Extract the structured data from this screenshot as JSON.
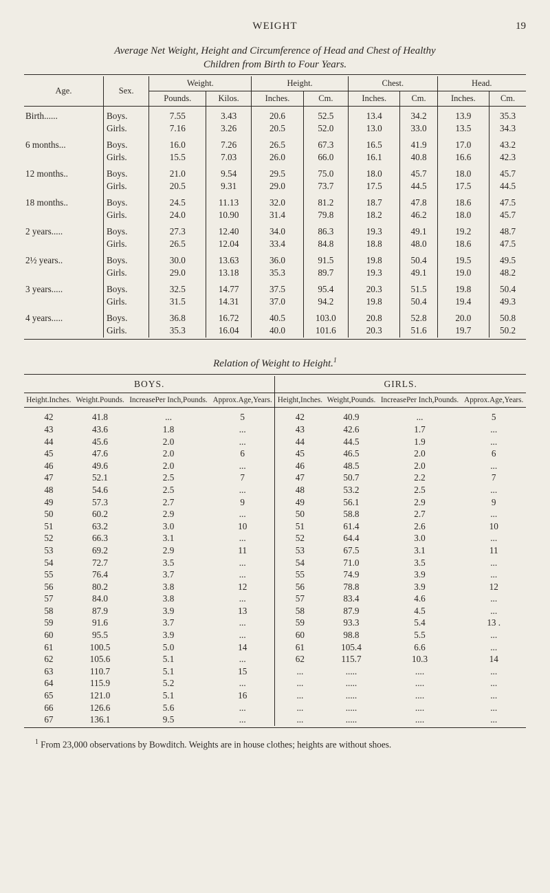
{
  "header": {
    "title": "WEIGHT",
    "page": "19"
  },
  "table1": {
    "caption_line1": "Average Net Weight, Height and Circumference of Head and Chest of Healthy",
    "caption_line2": "Children from Birth to Four Years.",
    "groups": {
      "age": "Age.",
      "sex": "Sex.",
      "weight": "Weight.",
      "height": "Height.",
      "chest": "Chest.",
      "head": "Head."
    },
    "subcols": {
      "pounds": "Pounds.",
      "kilos": "Kilos.",
      "inches": "Inches.",
      "cm": "Cm.",
      "cm2": "Cm."
    },
    "rows": [
      {
        "age": "Birth......",
        "sex": "Boys.",
        "wP": "7.55",
        "wK": "3.43",
        "hI": "20.6",
        "hC": "52.5",
        "cI": "13.4",
        "cC": "34.2",
        "hdI": "13.9",
        "hdC": "35.3"
      },
      {
        "age": "",
        "sex": "Girls.",
        "wP": "7.16",
        "wK": "3.26",
        "hI": "20.5",
        "hC": "52.0",
        "cI": "13.0",
        "cC": "33.0",
        "hdI": "13.5",
        "hdC": "34.3"
      },
      {
        "age": "6 months...",
        "sex": "Boys.",
        "wP": "16.0",
        "wK": "7.26",
        "hI": "26.5",
        "hC": "67.3",
        "cI": "16.5",
        "cC": "41.9",
        "hdI": "17.0",
        "hdC": "43.2"
      },
      {
        "age": "",
        "sex": "Girls.",
        "wP": "15.5",
        "wK": "7.03",
        "hI": "26.0",
        "hC": "66.0",
        "cI": "16.1",
        "cC": "40.8",
        "hdI": "16.6",
        "hdC": "42.3"
      },
      {
        "age": "12 months..",
        "sex": "Boys.",
        "wP": "21.0",
        "wK": "9.54",
        "hI": "29.5",
        "hC": "75.0",
        "cI": "18.0",
        "cC": "45.7",
        "hdI": "18.0",
        "hdC": "45.7"
      },
      {
        "age": "",
        "sex": "Girls.",
        "wP": "20.5",
        "wK": "9.31",
        "hI": "29.0",
        "hC": "73.7",
        "cI": "17.5",
        "cC": "44.5",
        "hdI": "17.5",
        "hdC": "44.5"
      },
      {
        "age": "18 months..",
        "sex": "Boys.",
        "wP": "24.5",
        "wK": "11.13",
        "hI": "32.0",
        "hC": "81.2",
        "cI": "18.7",
        "cC": "47.8",
        "hdI": "18.6",
        "hdC": "47.5"
      },
      {
        "age": "",
        "sex": "Girls.",
        "wP": "24.0",
        "wK": "10.90",
        "hI": "31.4",
        "hC": "79.8",
        "cI": "18.2",
        "cC": "46.2",
        "hdI": "18.0",
        "hdC": "45.7"
      },
      {
        "age": "2 years.....",
        "sex": "Boys.",
        "wP": "27.3",
        "wK": "12.40",
        "hI": "34.0",
        "hC": "86.3",
        "cI": "19.3",
        "cC": "49.1",
        "hdI": "19.2",
        "hdC": "48.7"
      },
      {
        "age": "",
        "sex": "Girls.",
        "wP": "26.5",
        "wK": "12.04",
        "hI": "33.4",
        "hC": "84.8",
        "cI": "18.8",
        "cC": "48.0",
        "hdI": "18.6",
        "hdC": "47.5"
      },
      {
        "age": "2½ years..",
        "sex": "Boys.",
        "wP": "30.0",
        "wK": "13.63",
        "hI": "36.0",
        "hC": "91.5",
        "cI": "19.8",
        "cC": "50.4",
        "hdI": "19.5",
        "hdC": "49.5"
      },
      {
        "age": "",
        "sex": "Girls.",
        "wP": "29.0",
        "wK": "13.18",
        "hI": "35.3",
        "hC": "89.7",
        "cI": "19.3",
        "cC": "49.1",
        "hdI": "19.0",
        "hdC": "48.2"
      },
      {
        "age": "3 years.....",
        "sex": "Boys.",
        "wP": "32.5",
        "wK": "14.77",
        "hI": "37.5",
        "hC": "95.4",
        "cI": "20.3",
        "cC": "51.5",
        "hdI": "19.8",
        "hdC": "50.4"
      },
      {
        "age": "",
        "sex": "Girls.",
        "wP": "31.5",
        "wK": "14.31",
        "hI": "37.0",
        "hC": "94.2",
        "cI": "19.8",
        "cC": "50.4",
        "hdI": "19.4",
        "hdC": "49.3"
      },
      {
        "age": "4 years.....",
        "sex": "Boys.",
        "wP": "36.8",
        "wK": "16.72",
        "hI": "40.5",
        "hC": "103.0",
        "cI": "20.8",
        "cC": "52.8",
        "hdI": "20.0",
        "hdC": "50.8"
      },
      {
        "age": "",
        "sex": "Girls.",
        "wP": "35.3",
        "wK": "16.04",
        "hI": "40.0",
        "hC": "101.6",
        "cI": "20.3",
        "cC": "51.6",
        "hdI": "19.7",
        "hdC": "50.2"
      }
    ]
  },
  "table2": {
    "caption": "Relation of Weight to Height.",
    "sup": "1",
    "panel_boys": "BOYS.",
    "panel_girls": "GIRLS.",
    "cols": {
      "hI": "Height.\nInches.",
      "wP": "Weight.\nPounds.",
      "inc": "Increase\nPer Inch,\nPounds.",
      "age": "Approx.\nAge,\nYears.",
      "hI2": "Height,\nInches.",
      "wP2": "Weight,\nPounds.",
      "inc2": "Increase\nPer Inch,\nPounds.",
      "age2": "Approx.\nAge,\nYears."
    },
    "rows": [
      {
        "h": "42",
        "bw": "41.8",
        "bi": "...",
        "ba": "5",
        "gw": "40.9",
        "gi": "...",
        "ga": "5"
      },
      {
        "h": "43",
        "bw": "43.6",
        "bi": "1.8",
        "ba": "...",
        "gw": "42.6",
        "gi": "1.7",
        "ga": "..."
      },
      {
        "h": "44",
        "bw": "45.6",
        "bi": "2.0",
        "ba": "...",
        "gw": "44.5",
        "gi": "1.9",
        "ga": "..."
      },
      {
        "h": "45",
        "bw": "47.6",
        "bi": "2.0",
        "ba": "6",
        "gw": "46.5",
        "gi": "2.0",
        "ga": "6"
      },
      {
        "h": "46",
        "bw": "49.6",
        "bi": "2.0",
        "ba": "...",
        "gw": "48.5",
        "gi": "2.0",
        "ga": "..."
      },
      {
        "h": "47",
        "bw": "52.1",
        "bi": "2.5",
        "ba": "7",
        "gw": "50.7",
        "gi": "2.2",
        "ga": "7"
      },
      {
        "h": "48",
        "bw": "54.6",
        "bi": "2.5",
        "ba": "...",
        "gw": "53.2",
        "gi": "2.5",
        "ga": "..."
      },
      {
        "h": "49",
        "bw": "57.3",
        "bi": "2.7",
        "ba": "9",
        "gw": "56.1",
        "gi": "2.9",
        "ga": "9"
      },
      {
        "h": "50",
        "bw": "60.2",
        "bi": "2.9",
        "ba": "...",
        "gw": "58.8",
        "gi": "2.7",
        "ga": "..."
      },
      {
        "h": "51",
        "bw": "63.2",
        "bi": "3.0",
        "ba": "10",
        "gw": "61.4",
        "gi": "2.6",
        "ga": "10"
      },
      {
        "h": "52",
        "bw": "66.3",
        "bi": "3.1",
        "ba": "...",
        "gw": "64.4",
        "gi": "3.0",
        "ga": "..."
      },
      {
        "h": "53",
        "bw": "69.2",
        "bi": "2.9",
        "ba": "11",
        "gw": "67.5",
        "gi": "3.1",
        "ga": "11"
      },
      {
        "h": "54",
        "bw": "72.7",
        "bi": "3.5",
        "ba": "...",
        "gw": "71.0",
        "gi": "3.5",
        "ga": "..."
      },
      {
        "h": "55",
        "bw": "76.4",
        "bi": "3.7",
        "ba": "...",
        "gw": "74.9",
        "gi": "3.9",
        "ga": "..."
      },
      {
        "h": "56",
        "bw": "80.2",
        "bi": "3.8",
        "ba": "12",
        "gw": "78.8",
        "gi": "3.9",
        "ga": "12"
      },
      {
        "h": "57",
        "bw": "84.0",
        "bi": "3.8",
        "ba": "...",
        "gw": "83.4",
        "gi": "4.6",
        "ga": "..."
      },
      {
        "h": "58",
        "bw": "87.9",
        "bi": "3.9",
        "ba": "13",
        "gw": "87.9",
        "gi": "4.5",
        "ga": "..."
      },
      {
        "h": "59",
        "bw": "91.6",
        "bi": "3.7",
        "ba": "...",
        "gw": "93.3",
        "gi": "5.4",
        "ga": "13 ."
      },
      {
        "h": "60",
        "bw": "95.5",
        "bi": "3.9",
        "ba": "...",
        "gw": "98.8",
        "gi": "5.5",
        "ga": "..."
      },
      {
        "h": "61",
        "bw": "100.5",
        "bi": "5.0",
        "ba": "14",
        "gw": "105.4",
        "gi": "6.6",
        "ga": "..."
      },
      {
        "h": "62",
        "bw": "105.6",
        "bi": "5.1",
        "ba": "...",
        "gw": "115.7",
        "gi": "10.3",
        "ga": "14"
      },
      {
        "h": "63",
        "bw": "110.7",
        "bi": "5.1",
        "ba": "15",
        "gw": "",
        "gi": "",
        "ga": ""
      },
      {
        "h": "64",
        "bw": "115.9",
        "bi": "5.2",
        "ba": "...",
        "gw": "",
        "gi": "",
        "ga": ""
      },
      {
        "h": "65",
        "bw": "121.0",
        "bi": "5.1",
        "ba": "16",
        "gw": "",
        "gi": "",
        "ga": ""
      },
      {
        "h": "66",
        "bw": "126.6",
        "bi": "5.6",
        "ba": "...",
        "gw": "",
        "gi": "",
        "ga": ""
      },
      {
        "h": "67",
        "bw": "136.1",
        "bi": "9.5",
        "ba": "...",
        "gw": "",
        "gi": "",
        "ga": ""
      }
    ]
  },
  "footnote": {
    "sup": "1",
    "text": " From 23,000 observations by Bowditch.  Weights are in house clothes; heights are without shoes."
  }
}
